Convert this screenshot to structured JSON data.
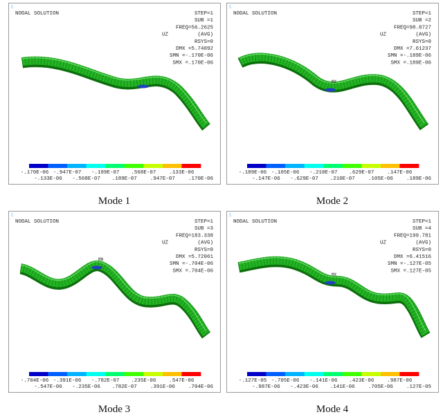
{
  "panels": [
    {
      "window_number": "1",
      "title": "NODAL SOLUTION",
      "step": "STEP=1",
      "sub": "SUB =1",
      "freq": "FREQ=56.2625",
      "quantity": "UZ",
      "averaging": "(AVG)",
      "rsys": "RSYS=0",
      "dmx": "DMX =5.74092",
      "smn": "SMN =-.170E-06",
      "smx": "SMX =.170E-06",
      "legend_labels": [
        "-.170E-06",
        "-.133E-06",
        "-.947E-07",
        "-.568E-07",
        "-.189E-07",
        ".189E-07",
        ".568E-07",
        ".947E-07",
        ".133E-06",
        ".170E-06"
      ],
      "caption": "Mode 1"
    },
    {
      "window_number": "1",
      "title": "NODAL SOLUTION",
      "step": "STEP=1",
      "sub": "SUB =2",
      "freq": "FREQ=98.8727",
      "quantity": "UZ",
      "averaging": "(AVG)",
      "rsys": "RSYS=0",
      "dmx": "DMX =7.61237",
      "smn": "SMN =-.189E-06",
      "smx": "SMX =.189E-06",
      "marker": "MX",
      "legend_labels": [
        "-.189E-06",
        "-.147E-06",
        "-.105E-06",
        "-.629E-07",
        "-.210E-07",
        ".210E-07",
        ".629E-07",
        ".105E-06",
        ".147E-06",
        ".189E-06"
      ],
      "caption": "Mode 2"
    },
    {
      "window_number": "1",
      "title": "NODAL SOLUTION",
      "step": "STEP=1",
      "sub": "SUB =3",
      "freq": "FREQ=183.338",
      "quantity": "UZ",
      "averaging": "(AVG)",
      "rsys": "RSYS=0",
      "dmx": "DMX =5.72061",
      "smn": "SMN =-.704E-06",
      "smx": "SMX =.704E-06",
      "marker": "MN",
      "legend_labels": [
        "-.704E-06",
        "-.547E-06",
        "-.391E-06",
        "-.235E-06",
        "-.782E-07",
        ".782E-07",
        ".235E-06",
        ".391E-06",
        ".547E-06",
        ".704E-06"
      ],
      "caption": "Mode 3"
    },
    {
      "window_number": "1",
      "title": "NODAL SOLUTION",
      "step": "STEP=1",
      "sub": "SUB =4",
      "freq": "FREQ=199.781",
      "quantity": "UZ",
      "averaging": "(AVG)",
      "rsys": "RSYS=0",
      "dmx": "DMX =6.41516",
      "smn": "SMN =-.127E-05",
      "smx": "SMX =.127E-05",
      "marker": "MX",
      "legend_labels": [
        "-.127E-05",
        "-.987E-06",
        "-.705E-06",
        "-.423E-06",
        "-.141E-06",
        ".141E-06",
        ".423E-06",
        ".705E-06",
        ".987E-06",
        ".127E-05"
      ],
      "caption": "Mode 4"
    }
  ]
}
